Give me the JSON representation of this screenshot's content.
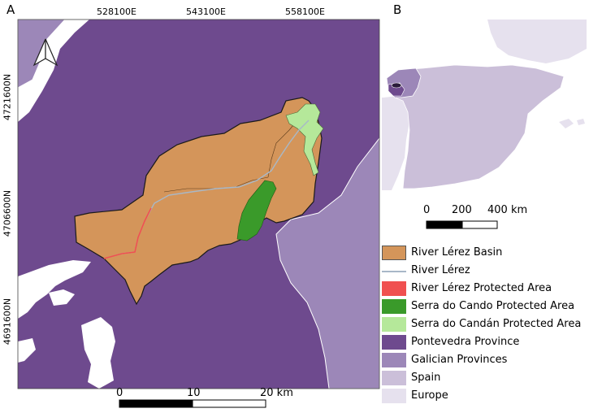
{
  "panels": {
    "a_label": "A",
    "b_label": "B"
  },
  "map_a": {
    "x_ticks": [
      "528100E",
      "543100E",
      "558100E"
    ],
    "y_ticks": [
      "4721600N",
      "4706600N",
      "4691600N"
    ],
    "scalebar": {
      "labels": [
        "0",
        "10",
        "20 km"
      ]
    }
  },
  "map_b": {
    "scalebar": {
      "labels": [
        "0",
        "200",
        "400 km"
      ]
    }
  },
  "legend": {
    "items": [
      {
        "label": "River Lérez Basin",
        "color": "#d4955a",
        "kind": "fill"
      },
      {
        "label": "River Lérez",
        "color": "#a8b8c8",
        "kind": "line"
      },
      {
        "label": "River Lérez Protected Area",
        "color": "#f05050",
        "kind": "fill"
      },
      {
        "label": "Serra do Cando Protected Area",
        "color": "#3a9a2a",
        "kind": "fill"
      },
      {
        "label": "Serra do Candán Protected Area",
        "color": "#b5e89a",
        "kind": "fill"
      },
      {
        "label": "Pontevedra Province",
        "color": "#6e4a8e",
        "kind": "fill"
      },
      {
        "label": "Galician Provinces",
        "color": "#9c87b8",
        "kind": "fill"
      },
      {
        "label": "Spain",
        "color": "#cbbfd9",
        "kind": "fill"
      },
      {
        "label": "Europe",
        "color": "#e6e1ee",
        "kind": "fill"
      }
    ]
  },
  "north_arrow": "north-arrow-icon"
}
